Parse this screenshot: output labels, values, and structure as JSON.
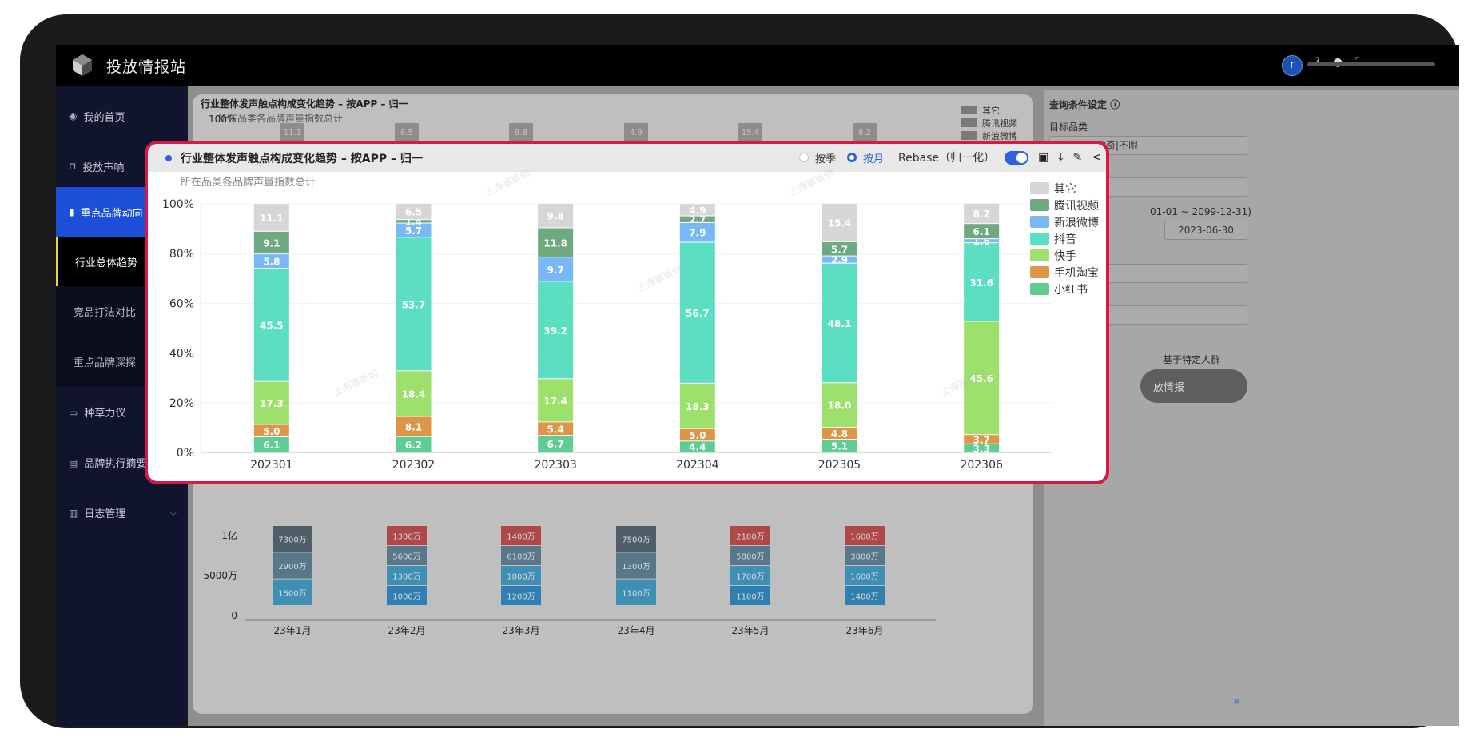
{
  "app": {
    "title": "投放情报站",
    "user_initial": "r"
  },
  "sidebar": {
    "items": [
      {
        "label": "我的首页",
        "icon": "target-icon",
        "y": 0
      },
      {
        "label": "投放声响",
        "icon": "bag-icon",
        "y": 0
      },
      {
        "label": "重点品牌动向",
        "icon": "bar-chart-icon",
        "y": 0
      },
      {
        "label": "行业总体趋势",
        "icon": "",
        "y": 0
      },
      {
        "label": "竞品打法对比",
        "icon": "",
        "y": 0
      },
      {
        "label": "重点品牌深探",
        "icon": "",
        "y": 0
      },
      {
        "label": "种草力仪",
        "icon": "monitor-icon",
        "y": 0
      },
      {
        "label": "品牌执行摘要",
        "icon": "document-icon",
        "y": 0
      },
      {
        "label": "日志管理",
        "icon": "notes-icon",
        "y": 0
      }
    ]
  },
  "query": {
    "title": "查询条件设定",
    "category_label": "目标品类",
    "category_value": "零食|饼干曲奇|不限",
    "date_range_hint": "01-01 ~ 2099-12-31)",
    "end_date": "2023-06-30",
    "crowd_label": "基于特定人群",
    "button_fragment": "放情报"
  },
  "background": {
    "y_ticks": [
      "1亿",
      "5000万",
      "0"
    ],
    "months": [
      "23年1月",
      "23年2月",
      "23年3月",
      "23年4月",
      "23年5月",
      "23年6月"
    ],
    "bar_labels": [
      [
        "7300万",
        "2900万",
        "1500万"
      ],
      [
        "1300万",
        "5600万",
        "1300万",
        "1000万"
      ],
      [
        "1400万",
        "6100万",
        "1800万",
        "1200万"
      ],
      [
        "7500万",
        "1300万",
        "1100万"
      ],
      [
        "2100万",
        "5800万",
        "1700万",
        "1100万"
      ],
      [
        "1600万",
        "3800万",
        "1600万",
        "1400万"
      ]
    ],
    "watermark": "上海塞斯明"
  },
  "card": {
    "title": "行业整体发声触点构成变化趋势 – 按APP – 归一",
    "subtitle": "所在品类各品牌声量指数总计",
    "radio_quarter": "按季",
    "radio_month": "按月",
    "rebase_label": "Rebase（归一化）",
    "icons": [
      "book-icon",
      "download-icon",
      "pin-icon",
      "share-icon"
    ]
  },
  "chart_data": {
    "type": "bar",
    "stacked": true,
    "categories": [
      "202301",
      "202302",
      "202303",
      "202304",
      "202305",
      "202306"
    ],
    "y_ticks": [
      "0%",
      "20%",
      "40%",
      "60%",
      "80%",
      "100%"
    ],
    "ylim": [
      0,
      100
    ],
    "legend_position": "right",
    "series": [
      {
        "name": "小红书",
        "color": "#5fcc94",
        "values": [
          6.1,
          6.2,
          6.7,
          4.4,
          5.1,
          3.3
        ]
      },
      {
        "name": "手机淘宝",
        "color": "#dd9548",
        "values": [
          5.0,
          8.1,
          5.4,
          5.0,
          4.8,
          3.7
        ]
      },
      {
        "name": "快手",
        "color": "#9de06c",
        "values": [
          17.3,
          18.4,
          17.4,
          18.3,
          18.0,
          45.6
        ]
      },
      {
        "name": "抖音",
        "color": "#5cdec2",
        "values": [
          45.5,
          53.7,
          39.2,
          56.7,
          48.1,
          31.6
        ]
      },
      {
        "name": "新浪微博",
        "color": "#7ab8f5",
        "values": [
          5.8,
          5.7,
          9.7,
          7.9,
          2.9,
          1.6
        ]
      },
      {
        "name": "腾讯视频",
        "color": "#6fa97f",
        "values": [
          9.1,
          1.4,
          11.8,
          2.7,
          5.7,
          6.1
        ]
      },
      {
        "name": "其它",
        "color": "#d6d6d6",
        "values": [
          11.1,
          6.5,
          9.8,
          4.9,
          15.4,
          8.2
        ]
      }
    ]
  }
}
